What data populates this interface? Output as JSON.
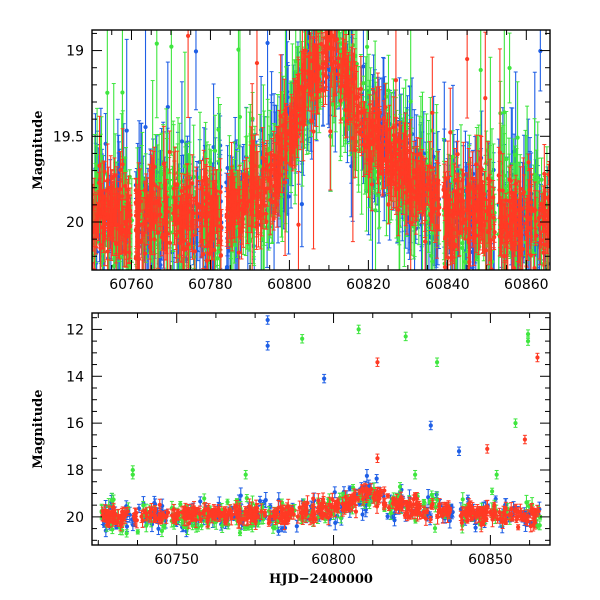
{
  "chart_data": [
    {
      "panel": "top",
      "type": "scatter",
      "title": "",
      "xlabel": "",
      "ylabel": "Magnitude",
      "xlim": [
        60750,
        60866
      ],
      "ylim": [
        20.28,
        18.88
      ],
      "y_inverted": true,
      "grid": false,
      "x_ticks": [
        60760,
        60780,
        60800,
        60820,
        60840,
        60860
      ],
      "y_ticks": [
        19,
        19.5,
        20
      ],
      "y_tick_labels": [
        "19",
        "19.5",
        "20"
      ],
      "series_colors": [
        "#1f5fe6",
        "#3fe63f",
        "#ff3a24"
      ],
      "dense_segments": [
        {
          "x0": 60750,
          "x1": 60760,
          "base": 19.98,
          "spread": 0.15
        },
        {
          "x0": 60761,
          "x1": 60783,
          "base": 19.98,
          "spread": 0.15
        },
        {
          "x0": 60784,
          "x1": 60797,
          "base": 19.88,
          "spread": 0.13
        },
        {
          "x0": 60797,
          "x1": 60811,
          "base": 19.55,
          "spread": 0.12
        },
        {
          "x0": 60811,
          "x1": 60838,
          "base": 19.6,
          "spread": 0.13
        },
        {
          "x0": 60839,
          "x1": 60852,
          "base": 19.92,
          "spread": 0.15
        },
        {
          "x0": 60853,
          "x1": 60866,
          "base": 19.98,
          "spread": 0.15
        }
      ],
      "light_curve": [
        {
          "x": 60750,
          "y": 19.98
        },
        {
          "x": 60784,
          "y": 19.96
        },
        {
          "x": 60796,
          "y": 19.72
        },
        {
          "x": 60803,
          "y": 19.3
        },
        {
          "x": 60808,
          "y": 19.05
        },
        {
          "x": 60810,
          "y": 18.9
        },
        {
          "x": 60812,
          "y": 19.05
        },
        {
          "x": 60820,
          "y": 19.5
        },
        {
          "x": 60830,
          "y": 19.72
        },
        {
          "x": 60838,
          "y": 19.9
        },
        {
          "x": 60850,
          "y": 19.96
        },
        {
          "x": 60866,
          "y": 19.98
        }
      ]
    },
    {
      "panel": "bottom",
      "type": "scatter",
      "title": "",
      "xlabel": "HJD−2400000",
      "ylabel": "Magnitude",
      "xlim": [
        60723,
        60869
      ],
      "ylim": [
        21.2,
        11.3
      ],
      "y_inverted": true,
      "grid": false,
      "x_ticks": [
        60750,
        60800,
        60850
      ],
      "y_ticks": [
        12,
        14,
        16,
        18,
        20
      ],
      "series_colors": [
        "#1f5fe6",
        "#3fe63f",
        "#ff3a24"
      ],
      "outliers": [
        {
          "x": 60779,
          "y": 11.6,
          "series": 0
        },
        {
          "x": 60779,
          "y": 12.7,
          "series": 0
        },
        {
          "x": 60790,
          "y": 12.4,
          "series": 1
        },
        {
          "x": 60797,
          "y": 14.1,
          "series": 0
        },
        {
          "x": 60808,
          "y": 12.0,
          "series": 1
        },
        {
          "x": 60814,
          "y": 13.4,
          "series": 2
        },
        {
          "x": 60823,
          "y": 12.3,
          "series": 1
        },
        {
          "x": 60831,
          "y": 16.1,
          "series": 0
        },
        {
          "x": 60833,
          "y": 13.4,
          "series": 1
        },
        {
          "x": 60840,
          "y": 17.2,
          "series": 0
        },
        {
          "x": 60849,
          "y": 17.1,
          "series": 2
        },
        {
          "x": 60852,
          "y": 18.2,
          "series": 1
        },
        {
          "x": 60858,
          "y": 16.0,
          "series": 1
        },
        {
          "x": 60861,
          "y": 16.7,
          "series": 2
        },
        {
          "x": 60862,
          "y": 12.2,
          "series": 1
        },
        {
          "x": 60862,
          "y": 12.5,
          "series": 1
        },
        {
          "x": 60865,
          "y": 13.2,
          "series": 2
        },
        {
          "x": 60736,
          "y": 18.0,
          "series": 1
        },
        {
          "x": 60736,
          "y": 18.2,
          "series": 1
        },
        {
          "x": 60772,
          "y": 18.2,
          "series": 1
        },
        {
          "x": 60814,
          "y": 17.5,
          "series": 2
        },
        {
          "x": 60826,
          "y": 18.2,
          "series": 1
        }
      ],
      "light_curve": [
        {
          "x": 60726,
          "y": 20.0
        },
        {
          "x": 60780,
          "y": 19.9
        },
        {
          "x": 60795,
          "y": 19.7
        },
        {
          "x": 60806,
          "y": 19.3
        },
        {
          "x": 60811,
          "y": 19.0
        },
        {
          "x": 60818,
          "y": 19.4
        },
        {
          "x": 60835,
          "y": 19.8
        },
        {
          "x": 60866,
          "y": 20.0
        }
      ]
    }
  ]
}
